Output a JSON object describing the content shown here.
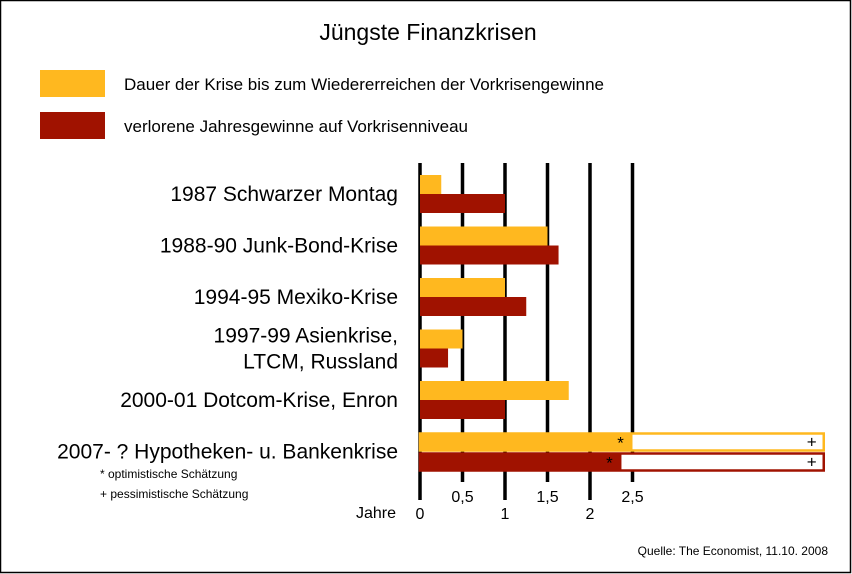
{
  "chart_data": {
    "type": "bar",
    "orientation": "horizontal",
    "title": "Jüngste Finanzkrisen",
    "xlabel": "Jahre",
    "xlim": [
      0,
      2.5
    ],
    "ticks": [
      "0",
      "0,5",
      "1",
      "1,5",
      "2",
      "2,5"
    ],
    "tick_values": [
      0,
      0.5,
      1,
      1.5,
      2,
      2.5
    ],
    "grid": true,
    "categories": [
      [
        "1987 Schwarzer Montag"
      ],
      [
        "1988-90 Junk-Bond-Krise"
      ],
      [
        "1994-95 Mexiko-Krise"
      ],
      [
        "1997-99 Asienkrise,",
        "LTCM, Russland"
      ],
      [
        "2000-01 Dotcom-Krise, Enron"
      ],
      [
        "2007- ? Hypotheken- u. Bankenkrise"
      ]
    ],
    "series": [
      {
        "name": "Dauer der Krise bis zum Wiedererreichen der Vorkrisengewinne",
        "color": "#FFB81F",
        "values": [
          0.25,
          1.5,
          1.0,
          0.5,
          1.75,
          2.5
        ],
        "pessimistic_last": 4.75
      },
      {
        "name": "verlorene Jahresgewinne auf Vorkrisenniveau",
        "color": "#A01200",
        "values": [
          1.0,
          1.63,
          1.25,
          0.33,
          1.0,
          2.37
        ],
        "pessimistic_last": 4.75
      }
    ],
    "markers": {
      "optimistic": "*",
      "pessimistic": "+"
    },
    "footnotes": [
      "* optimistische Schätzung",
      "+ pessimistische Schätzung"
    ],
    "source": "Quelle: The Economist, 11.10. 2008",
    "legend_position": "top-left"
  }
}
